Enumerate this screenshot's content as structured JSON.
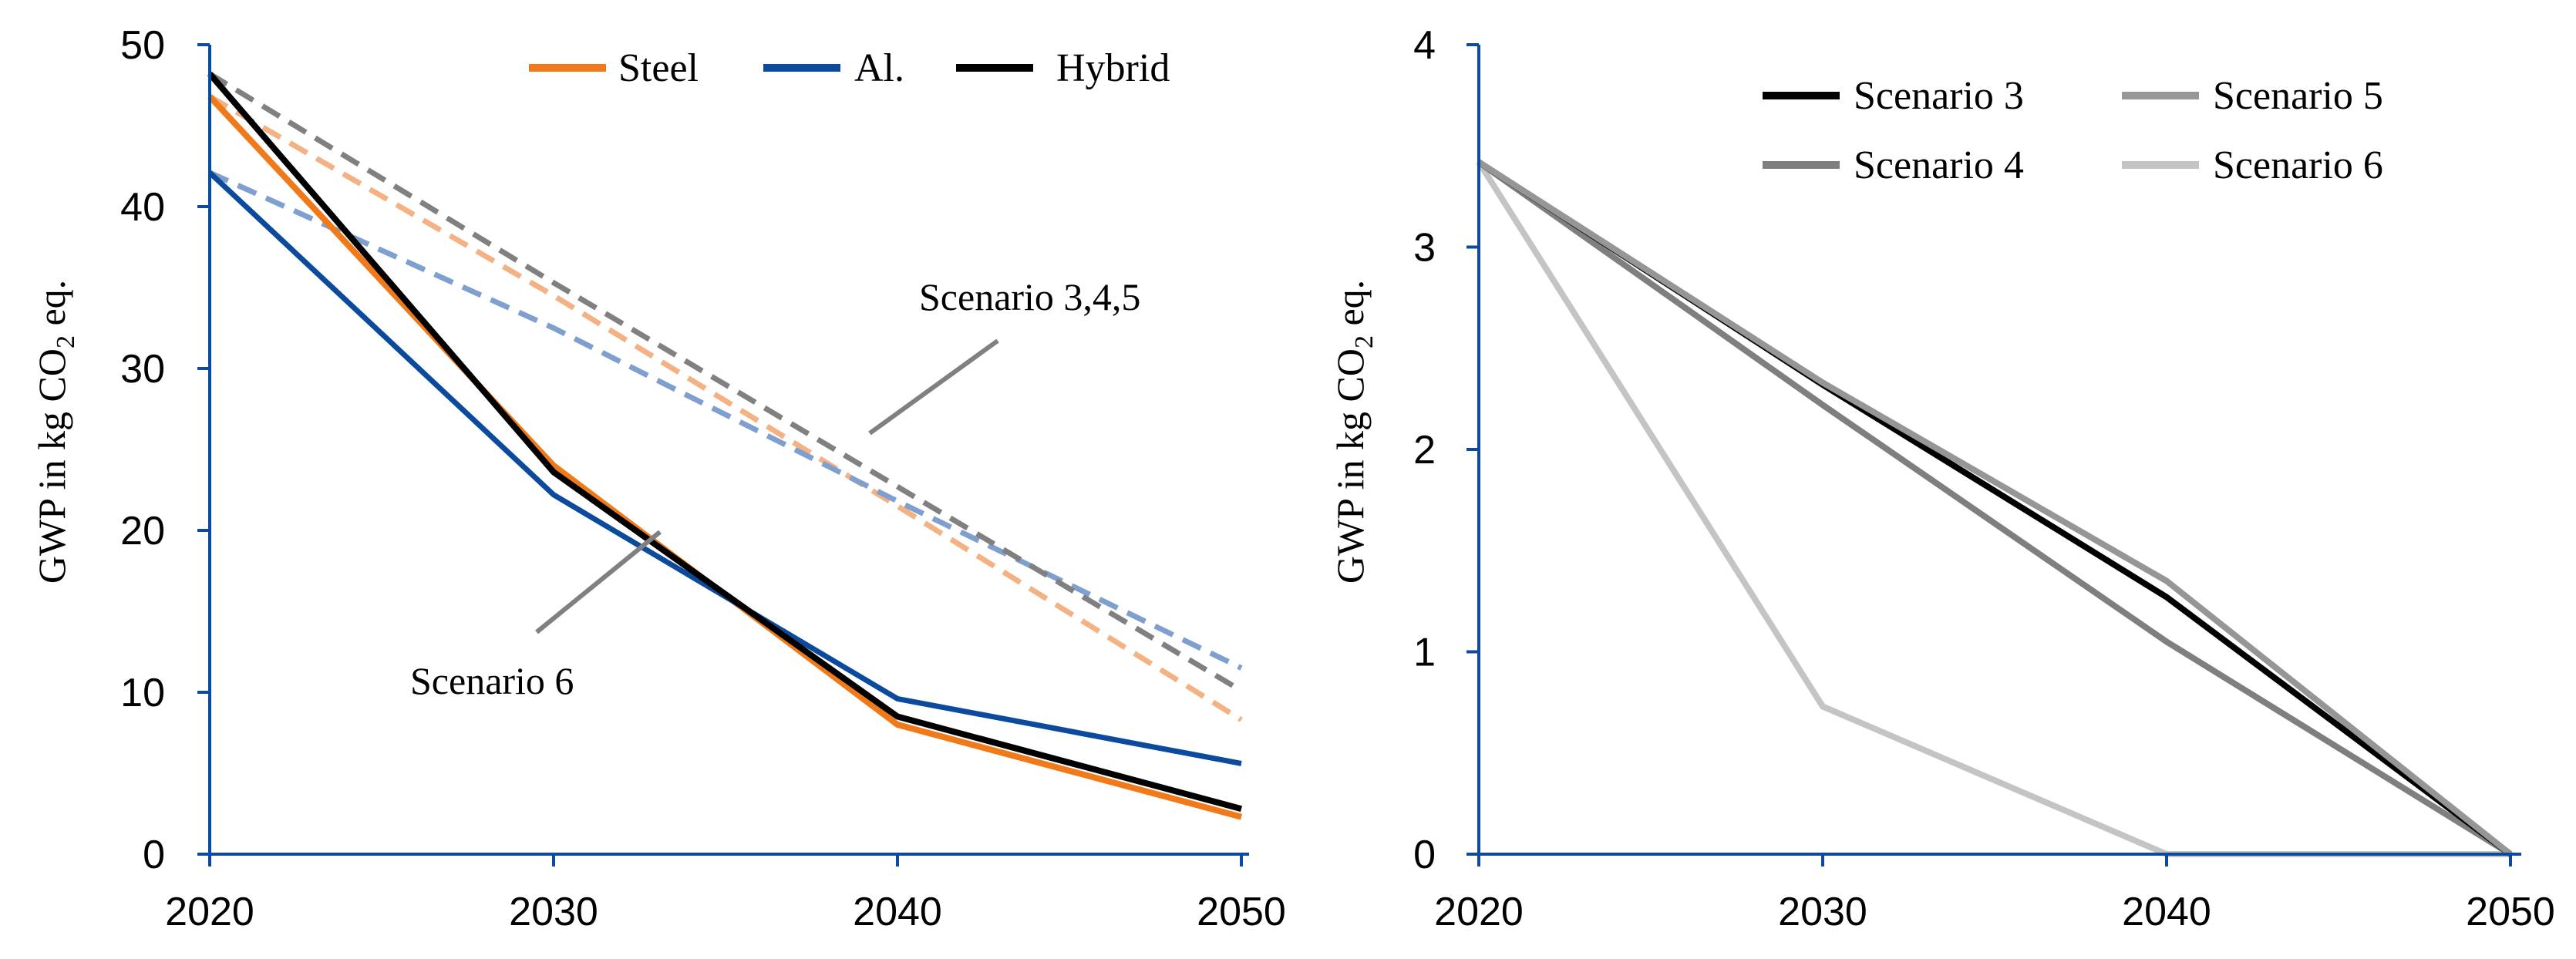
{
  "chart_data": [
    {
      "type": "line",
      "title": "",
      "xlabel": "",
      "ylabel": "GWP in kg CO₂ eq.",
      "ylabel_parts": {
        "before": "GWP in kg CO",
        "sub": "2",
        "after": " eq."
      },
      "x": [
        2020,
        2030,
        2040,
        2050
      ],
      "xticks": [
        "2020",
        "2030",
        "2040",
        "2050"
      ],
      "ylim": [
        0,
        50
      ],
      "yticks": [
        "0",
        "10",
        "20",
        "30",
        "40",
        "50"
      ],
      "ytick_values": [
        0,
        10,
        20,
        30,
        40,
        50
      ],
      "legend_position": "top-right",
      "series": [
        {
          "name": "Steel scenario 3,4,5",
          "legend": false,
          "style": "dashed",
          "color": "#f4b183",
          "values": [
            46.8,
            34.5,
            21.5,
            8.3
          ]
        },
        {
          "name": "Al. scenario 3,4,5",
          "legend": false,
          "style": "dashed",
          "color": "#7f9fcf",
          "values": [
            42.1,
            32.5,
            21.8,
            11.5
          ]
        },
        {
          "name": "Hybrid scenario 3,4,5",
          "legend": false,
          "style": "dashed",
          "color": "#808080",
          "values": [
            48.2,
            35.3,
            22.7,
            10.1
          ]
        },
        {
          "name": "Steel",
          "legend": true,
          "style": "solid",
          "color": "#f07a1a",
          "values": [
            46.8,
            24.0,
            8.0,
            2.3
          ]
        },
        {
          "name": "Al.",
          "legend": true,
          "style": "solid",
          "color": "#0b4a9c",
          "values": [
            42.1,
            22.2,
            9.6,
            5.6
          ]
        },
        {
          "name": "Hybrid",
          "legend": true,
          "style": "solid",
          "color": "#000000",
          "values": [
            48.2,
            23.6,
            8.5,
            2.8
          ]
        }
      ],
      "annotations": [
        {
          "text": "Scenario 3,4,5",
          "points_to": "dashed lines"
        },
        {
          "text": "Scenario 6",
          "points_to": "solid lines"
        }
      ]
    },
    {
      "type": "line",
      "title": "",
      "xlabel": "",
      "ylabel": "GWP in kg CO₂ eq.",
      "ylabel_parts": {
        "before": "GWP in kg CO",
        "sub": "2",
        "after": " eq."
      },
      "x": [
        2020,
        2030,
        2040,
        2050
      ],
      "xticks": [
        "2020",
        "2030",
        "2040",
        "2050"
      ],
      "ylim": [
        0,
        4
      ],
      "yticks": [
        "0",
        "1",
        "2",
        "3",
        "4"
      ],
      "ytick_values": [
        0,
        1,
        2,
        3,
        4
      ],
      "legend_position": "top-right",
      "series": [
        {
          "name": "Scenario 3",
          "legend": true,
          "style": "solid",
          "color": "#000000",
          "values": [
            3.42,
            2.32,
            1.27,
            0
          ]
        },
        {
          "name": "Scenario 4",
          "legend": true,
          "style": "solid",
          "color": "#7f7f7f",
          "values": [
            3.42,
            2.22,
            1.05,
            0
          ]
        },
        {
          "name": "Scenario 5",
          "legend": true,
          "style": "solid",
          "color": "#969696",
          "values": [
            3.42,
            2.33,
            1.35,
            0
          ]
        },
        {
          "name": "Scenario 6",
          "legend": true,
          "style": "solid",
          "color": "#c4c4c4",
          "values": [
            3.42,
            0.73,
            0,
            0
          ]
        }
      ],
      "annotations": []
    }
  ]
}
